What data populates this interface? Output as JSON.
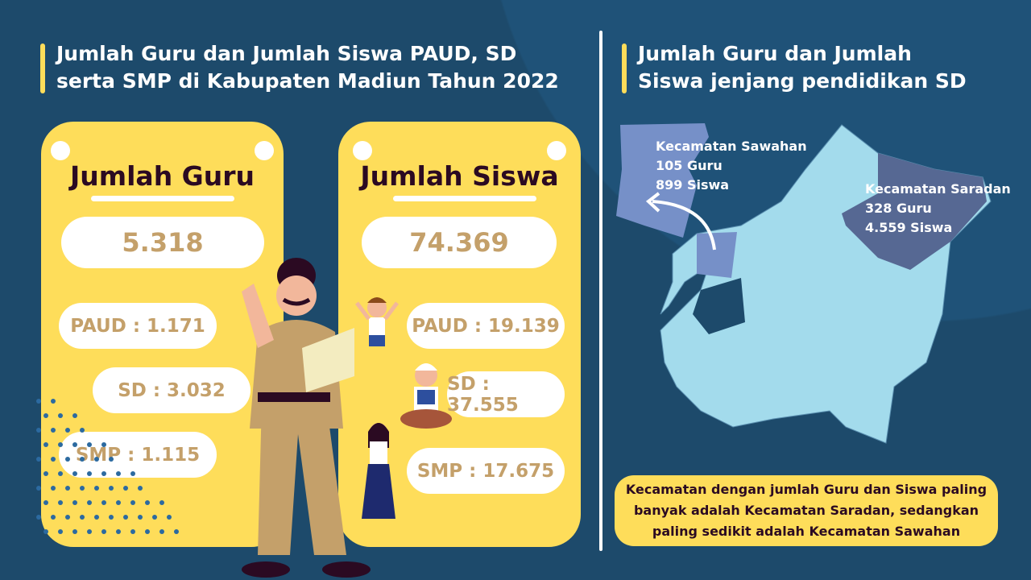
{
  "left_title": "Jumlah Guru dan Jumlah Siswa PAUD, SD serta SMP di Kabupaten Madiun Tahun 2022",
  "right_title": "Jumlah Guru dan Jumlah Siswa jenjang pendidikan SD",
  "guru": {
    "title": "Jumlah Guru",
    "total": "5.318",
    "paud": "PAUD : 1.171",
    "sd": "SD : 3.032",
    "smp": "SMP : 1.115"
  },
  "siswa": {
    "title": "Jumlah Siswa",
    "total": "74.369",
    "paud": "PAUD : 19.139",
    "sd": "SD : 37.555",
    "smp": "SMP : 17.675"
  },
  "map": {
    "sawahan": {
      "name": "Kecamatan Sawahan",
      "guru": "105 Guru",
      "siswa": "899 Siswa"
    },
    "saradan": {
      "name": "Kecamatan Saradan",
      "guru": "328 Guru",
      "siswa": "4.559 Siswa"
    }
  },
  "note": "Kecamatan dengan jumlah Guru dan Siswa paling banyak adalah Kecamatan Saradan, sedangkan paling sedikit adalah Kecamatan Sawahan",
  "colors": {
    "background": "#1d4a6b",
    "card": "#fedd5a",
    "value": "#c4a06a",
    "map_base": "#a3dbec",
    "sawahan": "#7690c8",
    "saradan": "#566893"
  }
}
